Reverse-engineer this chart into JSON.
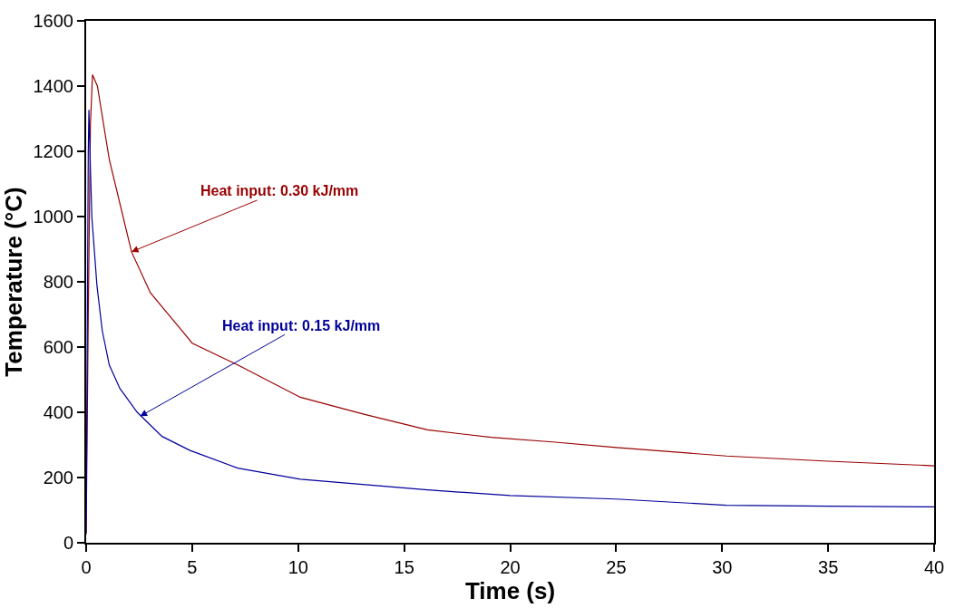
{
  "chart_data": {
    "type": "line",
    "xlabel": "Time (s)",
    "ylabel": "Temperature (°C)",
    "xlim": [
      0,
      40
    ],
    "xticks": [
      0,
      5,
      10,
      15,
      20,
      25,
      30,
      35,
      40
    ],
    "ylim": [
      0,
      1600
    ],
    "yticks": [
      0,
      200,
      400,
      600,
      800,
      1000,
      1200,
      1400,
      1600
    ],
    "marker": "none",
    "line_style": "solid",
    "series": [
      {
        "color": "#990000",
        "x": [
          0,
          0.1,
          0.2,
          0.3,
          0.53,
          1.09,
          2.14,
          3.03,
          4.57,
          5,
          7.15,
          10.1,
          13.1,
          16.1,
          19.1,
          22,
          25,
          30.2,
          35,
          40
        ],
        "values": [
          25,
          700,
          1280,
          1435,
          1400,
          1175,
          892,
          766,
          646,
          612,
          545,
          446,
          394,
          346,
          323,
          309,
          292,
          266,
          250,
          236
        ]
      },
      {
        "color": "#000099",
        "x": [
          0,
          0.05,
          0.1,
          0.13,
          0.2,
          0.27,
          0.51,
          0.76,
          1.09,
          1.59,
          2.41,
          3.58,
          4.9,
          7.15,
          10.1,
          16.1,
          20,
          25,
          30.2,
          35,
          40
        ],
        "values": [
          30,
          600,
          1200,
          1327,
          1150,
          997,
          788,
          650,
          545,
          473,
          400,
          326,
          283,
          229,
          195,
          162,
          145,
          134,
          115,
          112,
          110
        ]
      }
    ],
    "annotations": [
      {
        "text": "Heat input: 0.30 kJ/mm",
        "x": 2.14,
        "y": 892
      },
      {
        "text": "Heat input: 0.15 kJ/mm",
        "x": 2.55,
        "y": 388
      }
    ]
  }
}
